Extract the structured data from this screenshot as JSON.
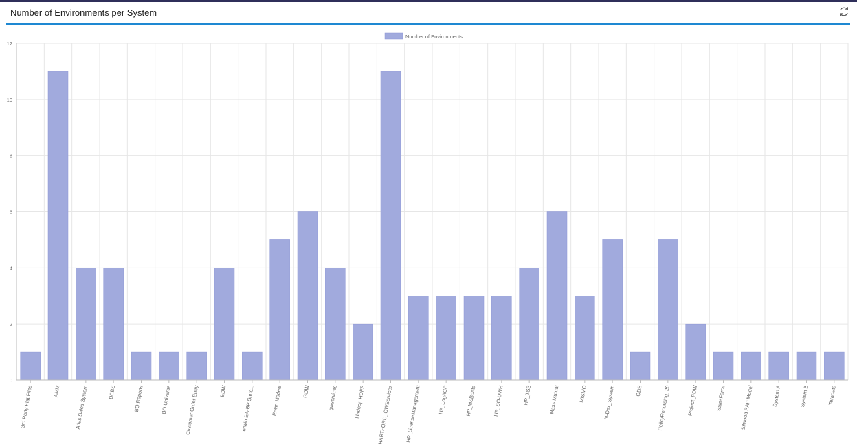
{
  "header": {
    "title": "Number of Environments per System",
    "refresh_icon": "refresh-icon"
  },
  "colors": {
    "bar_fill": "#a1aadd",
    "bar_stroke": "#8c96d6",
    "grid": "#e6e6e6",
    "accent": "#1e88d2"
  },
  "chart_data": {
    "type": "bar",
    "title": "",
    "xlabel": "",
    "ylabel": "",
    "ylim": [
      0,
      12
    ],
    "yticks": [
      0,
      2,
      4,
      6,
      8,
      10,
      12
    ],
    "grid": true,
    "legend_position": "top",
    "categories": [
      "3rd Party Flat Files",
      "AMM",
      "Atlas Sales System",
      "BCBS",
      "BO Reports",
      "BO Universe",
      "Customer Order Entry",
      "EDW",
      "erwin EA-BP Shuc...",
      "Erwin Models",
      "GDW",
      "gwservices",
      "Hadoop HDFS",
      "HARTFORD_GWServices",
      "HP_LicenseManagement",
      "HP_LogACC",
      "HP_MSBdata",
      "HP_SO-DWH",
      "HP_TSS",
      "Mass Mutual",
      "MISMO",
      "N-Dex_System",
      "ODS",
      "PolicyRecording_20",
      "Project_EDW",
      "SalesForce",
      "Silwood SAP Model",
      "System A",
      "System B",
      "Teradata"
    ],
    "series": [
      {
        "name": "Number of Environments",
        "values": [
          1,
          11,
          4,
          4,
          1,
          1,
          1,
          4,
          1,
          5,
          6,
          4,
          2,
          11,
          3,
          3,
          3,
          3,
          4,
          6,
          3,
          5,
          1,
          5,
          2,
          1,
          1,
          1,
          1,
          1
        ]
      }
    ]
  }
}
